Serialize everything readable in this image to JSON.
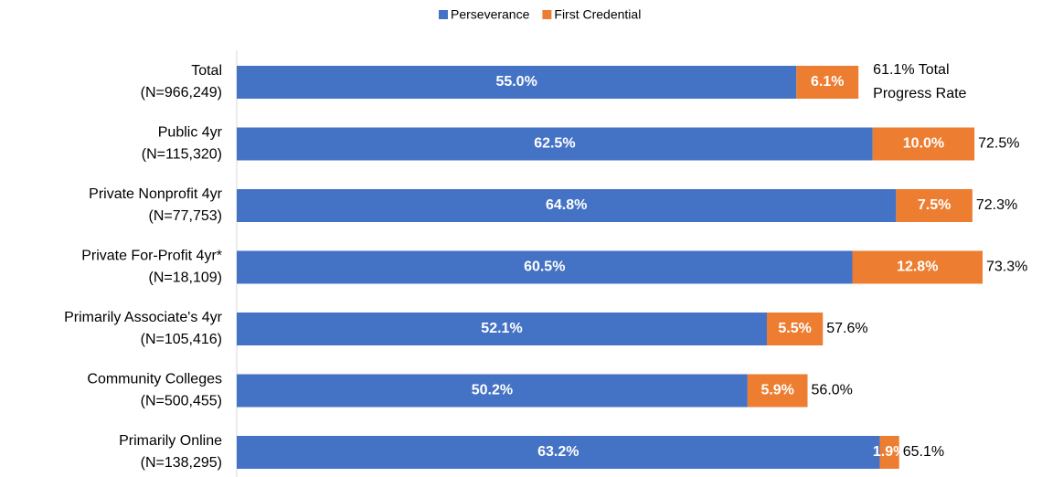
{
  "chart_data": {
    "type": "stacked-bar-horizontal",
    "categories": [
      [
        "Total",
        "(N=966,249)"
      ],
      [
        "Public 4yr",
        "(N=115,320)"
      ],
      [
        "Private Nonprofit 4yr",
        "(N=77,753)"
      ],
      [
        "Private For-Profit 4yr*",
        "(N=18,109)"
      ],
      [
        "Primarily Associate's 4yr",
        "(N=105,416)"
      ],
      [
        "Community Colleges",
        "(N=500,455)"
      ],
      [
        "Primarily Online",
        "(N=138,295)"
      ]
    ],
    "series": [
      {
        "name": "Perseverance",
        "color": "#4472c4",
        "values": [
          55.0,
          62.5,
          64.8,
          60.5,
          52.1,
          50.2,
          63.2
        ],
        "value_labels": [
          "55.0%",
          "62.5%",
          "64.8%",
          "60.5%",
          "52.1%",
          "50.2%",
          "63.2%"
        ]
      },
      {
        "name": "First Credential",
        "color": "#ed7d31",
        "values": [
          6.1,
          10.0,
          7.5,
          12.8,
          5.5,
          5.9,
          1.9
        ],
        "value_labels": [
          "6.1%",
          "10.0%",
          "7.5%",
          "12.8%",
          "5.5%",
          "5.9%",
          "1.9%"
        ]
      }
    ],
    "totals": [
      61.1,
      72.5,
      72.3,
      73.3,
      57.6,
      56.0,
      65.1
    ],
    "total_labels": [
      [
        "61.1% Total",
        "Progress Rate"
      ],
      [
        "72.5%"
      ],
      [
        "72.3%"
      ],
      [
        "73.3%"
      ],
      [
        "57.6%"
      ],
      [
        "56.0%"
      ],
      [
        "65.1%"
      ]
    ],
    "legend": "top"
  }
}
